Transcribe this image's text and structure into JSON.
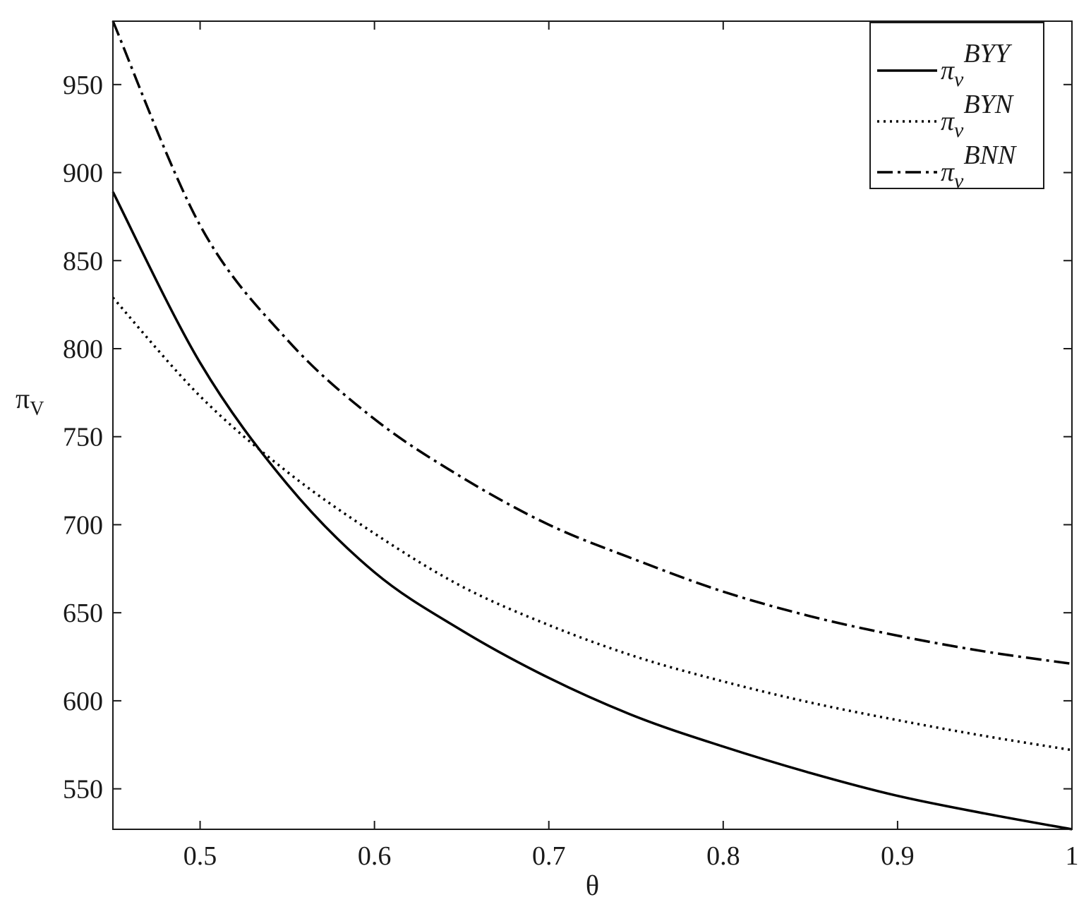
{
  "chart_data": {
    "type": "line",
    "xlabel": "θ",
    "ylabel": {
      "main": "π",
      "sub": "V"
    },
    "xlim": [
      0.45,
      1.0
    ],
    "ylim": [
      527,
      986
    ],
    "xticks": [
      0.5,
      0.6,
      0.7,
      0.8,
      0.9,
      1.0
    ],
    "xtick_labels": [
      "0.5",
      "0.6",
      "0.7",
      "0.8",
      "0.9",
      "1"
    ],
    "yticks": [
      550,
      600,
      650,
      700,
      750,
      800,
      850,
      900,
      950
    ],
    "ytick_labels": [
      "550",
      "600",
      "650",
      "700",
      "750",
      "800",
      "850",
      "900",
      "950"
    ],
    "grid": false,
    "legend_position": "top-right",
    "x": [
      0.45,
      0.5,
      0.55,
      0.6,
      0.65,
      0.7,
      0.75,
      0.8,
      0.85,
      0.9,
      0.95,
      1.0
    ],
    "series": [
      {
        "name_main": "π",
        "name_sub": "v",
        "name_sup": "BYY",
        "dash": "solid",
        "color": "#000000",
        "values": [
          889,
          792,
          723,
          673,
          640,
          613,
          591,
          574,
          559,
          546,
          536,
          527
        ]
      },
      {
        "name_main": "π",
        "name_sub": "v",
        "name_sup": "BYN",
        "dash": "dotted",
        "color": "#000000",
        "values": [
          829,
          773,
          730,
          695,
          665,
          643,
          625,
          611,
          599,
          589,
          580,
          572
        ]
      },
      {
        "name_main": "π",
        "name_sub": "v",
        "name_sup": "BNN",
        "dash": "dashdot",
        "color": "#000000",
        "values": [
          986,
          870,
          805,
          760,
          727,
          700,
          680,
          662,
          648,
          637,
          628,
          621
        ]
      }
    ]
  }
}
